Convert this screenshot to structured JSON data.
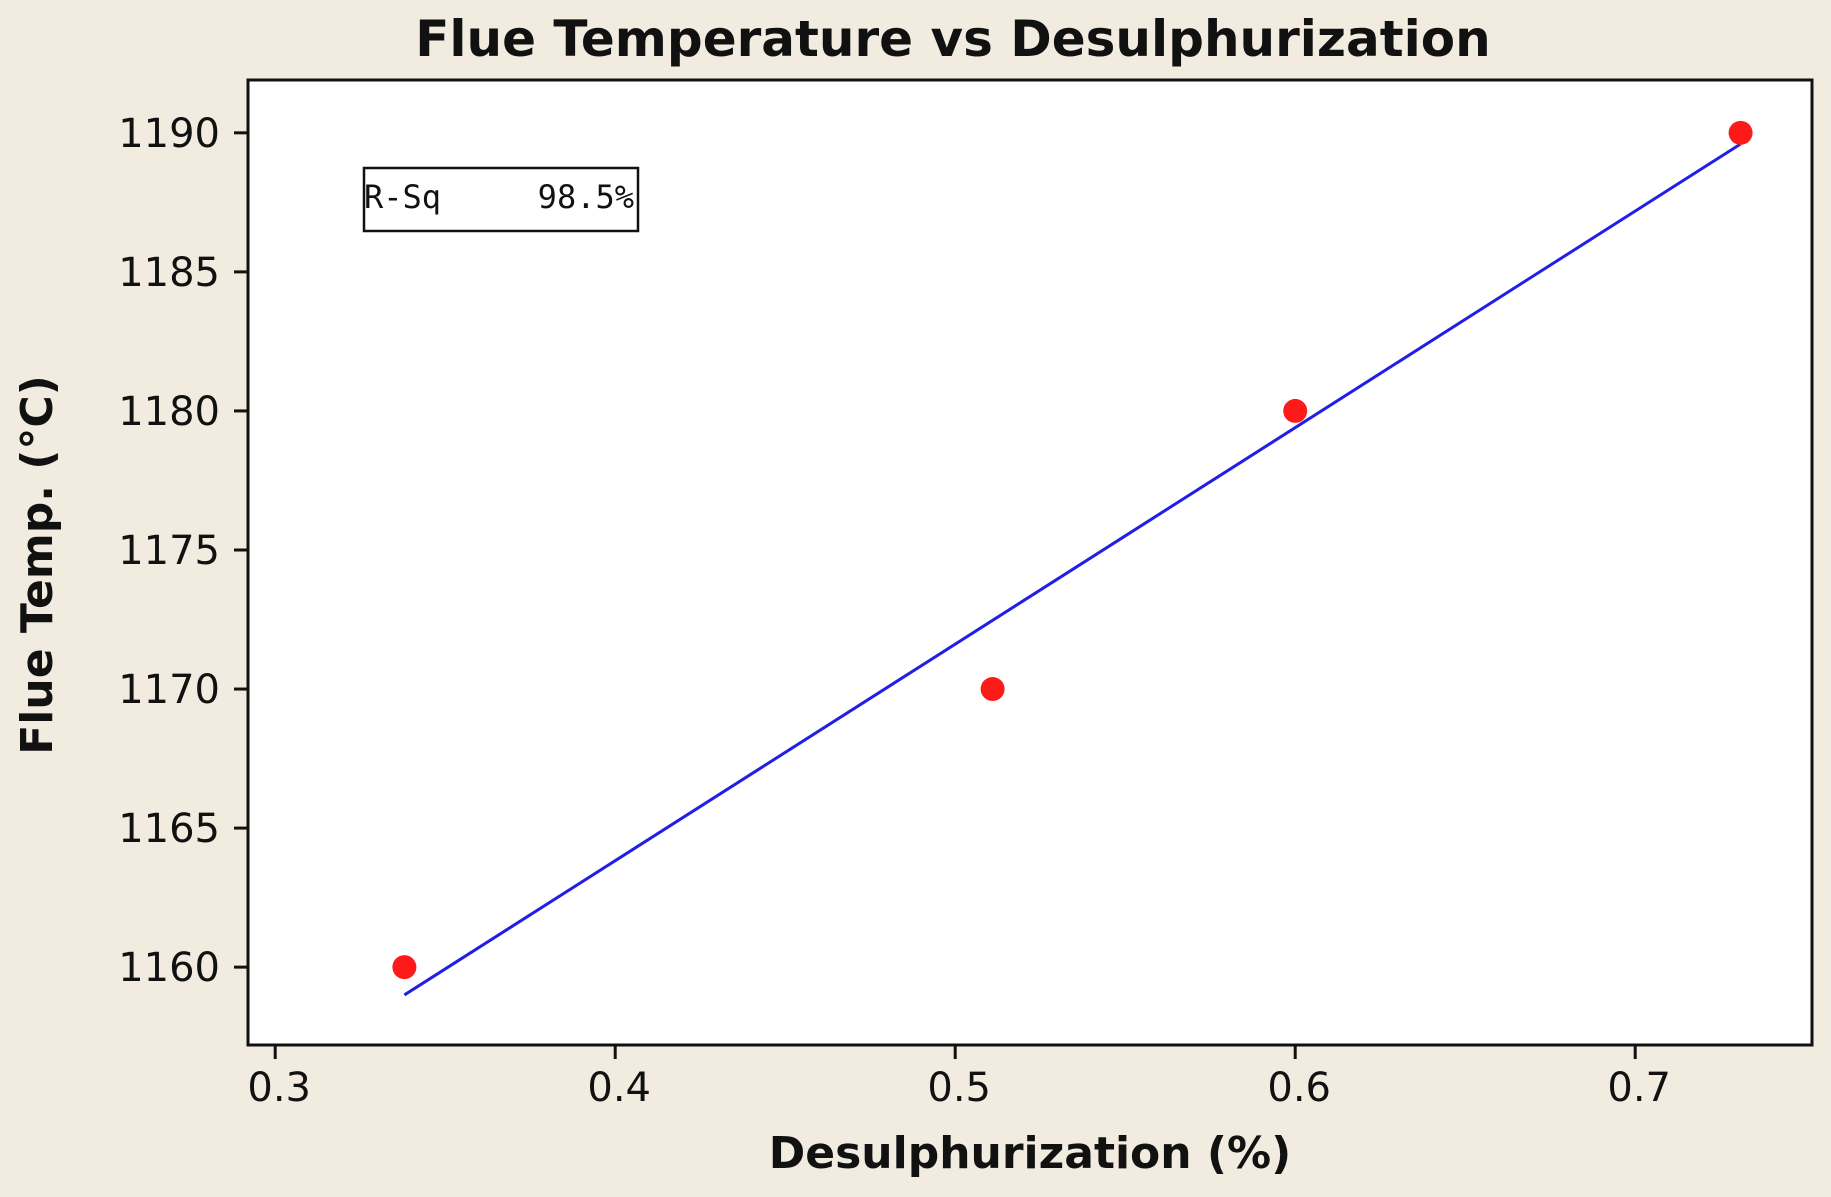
{
  "chart_data": {
    "type": "scatter",
    "title": "Flue Temperature vs Desulphurization",
    "xlabel": "Desulphurization (%)",
    "ylabel": "Flue Temp. (°C)",
    "xlim": [
      0.292,
      0.752
    ],
    "ylim": [
      1157.2,
      1191.9
    ],
    "x_ticks": [
      0.3,
      0.4,
      0.5,
      0.6,
      0.7
    ],
    "x_tick_labels": [
      "0.3",
      "0.4",
      "0.5",
      "0.6",
      "0.7"
    ],
    "y_ticks": [
      1160,
      1165,
      1170,
      1175,
      1180,
      1185,
      1190
    ],
    "y_tick_labels": [
      "1160",
      "1165",
      "1170",
      "1175",
      "1180",
      "1185",
      "1190"
    ],
    "grid": false,
    "points": [
      {
        "x": 0.338,
        "y": 1160
      },
      {
        "x": 0.511,
        "y": 1170
      },
      {
        "x": 0.6,
        "y": 1180
      },
      {
        "x": 0.731,
        "y": 1190
      }
    ],
    "fit_line": {
      "x": [
        0.338,
        0.731
      ],
      "y": [
        1159.0,
        1189.6
      ]
    },
    "annotation": {
      "label": "R-Sq",
      "value": "98.5%",
      "placement": "top-left"
    },
    "colors": {
      "points": "#ff1a1a",
      "fit_line": "#1f1fe6",
      "axes": "#111111"
    }
  }
}
